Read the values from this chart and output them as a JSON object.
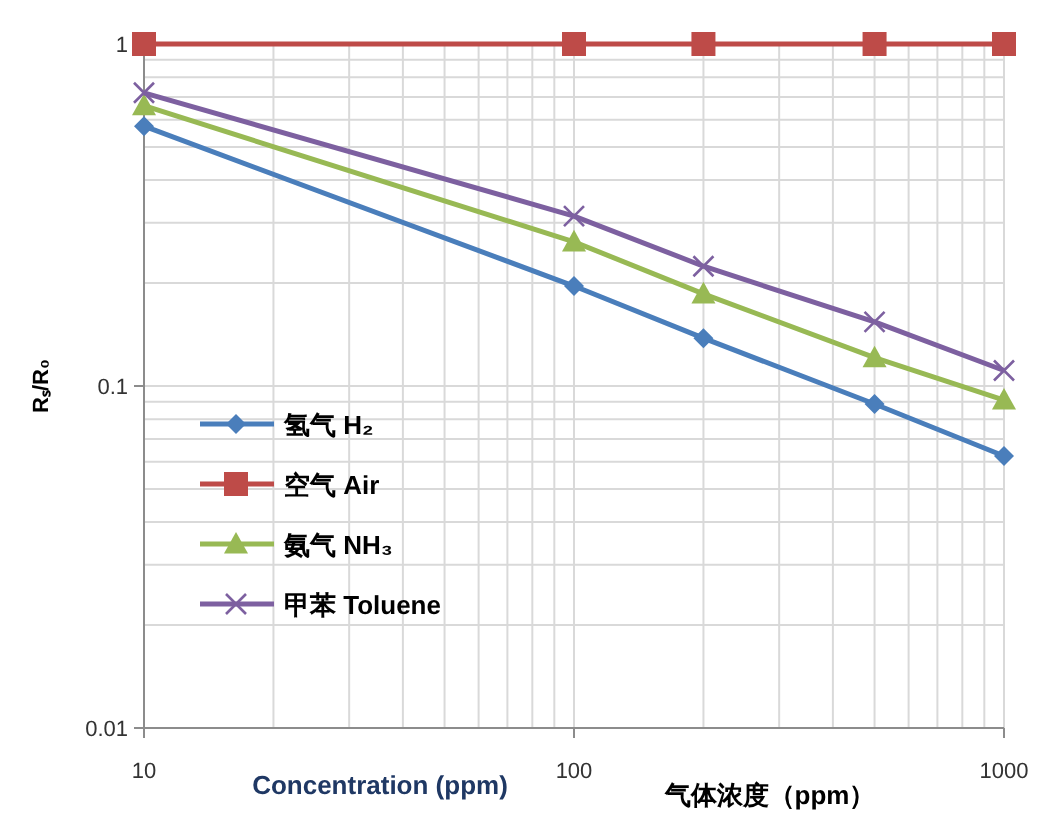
{
  "chart_data": {
    "type": "line",
    "xlabel": "Concentration (ppm)",
    "ylabel": "Rₛ/R₀",
    "annotations": [
      "气体浓度（ppm）"
    ],
    "x": [
      10,
      100,
      200,
      500,
      1000
    ],
    "log": "xy",
    "grid": true,
    "legend": "left",
    "xlim": [
      10,
      1000
    ],
    "xticks": [
      10,
      100,
      1000
    ],
    "ylim": [
      0.01,
      1
    ],
    "yticks": [
      0.01,
      0.1,
      1
    ],
    "series": [
      {
        "name": "氢气 H₂",
        "color": "#4a7ebb",
        "marker": "diamond",
        "values": [
          0.575,
          0.196,
          0.138,
          0.0886,
          0.0624
        ]
      },
      {
        "name": "空气 Air",
        "color": "#be4b48",
        "marker": "square",
        "values": [
          1,
          1,
          1,
          1,
          1
        ]
      },
      {
        "name": "氨气 NH₃",
        "color": "#98b954",
        "marker": "triangle",
        "values": [
          0.66,
          0.264,
          0.186,
          0.121,
          0.091
        ]
      },
      {
        "name": "甲苯 Toluene",
        "color": "#7d60a0",
        "marker": "cross",
        "values": [
          0.72,
          0.314,
          0.224,
          0.154,
          0.111
        ]
      }
    ]
  }
}
